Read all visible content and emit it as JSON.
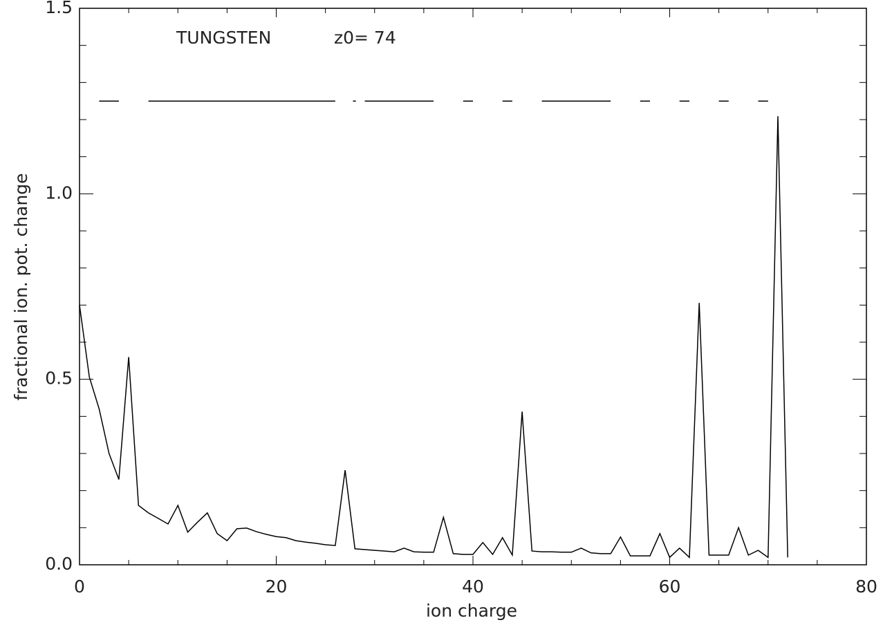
{
  "chart_data": {
    "type": "line",
    "xlabel": "ion charge",
    "ylabel": "fractional ion. pot. change",
    "annotations": [
      "TUNGSTEN",
      "z0=  74"
    ],
    "xlim": [
      0,
      80
    ],
    "ylim": [
      0,
      1.5
    ],
    "xticks": [
      0,
      20,
      40,
      60,
      80
    ],
    "yticks": [
      {
        "value": 0,
        "label": "0.0"
      },
      {
        "value": 0.5,
        "label": "0.5"
      },
      {
        "value": 1,
        "label": "1.0"
      },
      {
        "value": 1.5,
        "label": "1.5"
      }
    ],
    "xminorticks": [
      5,
      10,
      15,
      25,
      30,
      35,
      45,
      50,
      55,
      65,
      70,
      75
    ],
    "yminorticks": [
      0.1,
      0.2,
      0.3,
      0.4,
      0.6,
      0.7,
      0.8,
      0.9,
      1.1,
      1.2,
      1.3,
      1.4
    ],
    "series": [
      {
        "color": "#000000",
        "x": [
          0,
          1,
          2,
          3,
          4,
          5,
          6,
          7,
          8,
          9,
          10,
          11,
          12,
          13,
          14,
          15,
          16,
          17,
          18,
          19,
          20,
          21,
          22,
          23,
          24,
          25,
          26,
          27,
          28,
          29,
          30,
          31,
          32,
          33,
          34,
          35,
          36,
          37,
          38,
          39,
          40,
          41,
          42,
          43,
          44,
          45,
          46,
          47,
          48,
          49,
          50,
          51,
          52,
          53,
          54,
          55,
          56,
          57,
          58,
          59,
          60,
          61,
          62,
          63,
          64,
          65,
          66,
          67,
          68,
          69,
          70,
          71,
          72
        ],
        "values": [
          0.7,
          0.506,
          0.42,
          0.3,
          0.23,
          0.56,
          0.16,
          0.14,
          0.125,
          0.11,
          0.16,
          0.088,
          0.115,
          0.14,
          0.084,
          0.065,
          0.097,
          0.099,
          0.089,
          0.082,
          0.076,
          0.073,
          0.065,
          0.061,
          0.058,
          0.054,
          0.052,
          0.255,
          0.043,
          0.041,
          0.039,
          0.037,
          0.035,
          0.045,
          0.035,
          0.034,
          0.034,
          0.128,
          0.03,
          0.028,
          0.028,
          0.06,
          0.028,
          0.073,
          0.026,
          0.413,
          0.037,
          0.035,
          0.035,
          0.034,
          0.034,
          0.045,
          0.032,
          0.03,
          0.03,
          0.075,
          0.024,
          0.024,
          0.024,
          0.084,
          0.02,
          0.045,
          0.02,
          0.706,
          0.026,
          0.026,
          0.026,
          0.1,
          0.026,
          0.039,
          0.02,
          1.209,
          0.02
        ]
      },
      {
        "color": "#000000",
        "x": [
          2,
          4,
          5,
          7,
          26,
          27,
          27.8,
          28.1,
          28.5,
          29,
          36,
          37,
          39,
          40,
          41,
          43,
          44,
          45,
          47,
          54,
          55,
          57,
          58,
          59,
          61,
          62,
          63,
          65,
          66,
          67,
          69,
          70
        ],
        "values": [
          1.25,
          1.25,
          null,
          1.25,
          1.25,
          null,
          1.25,
          1.25,
          null,
          1.25,
          1.25,
          null,
          1.25,
          1.25,
          null,
          1.25,
          1.25,
          null,
          1.25,
          1.25,
          null,
          1.25,
          1.25,
          null,
          1.25,
          1.25,
          null,
          1.25,
          1.25,
          null,
          1.25,
          1.25
        ]
      }
    ]
  }
}
